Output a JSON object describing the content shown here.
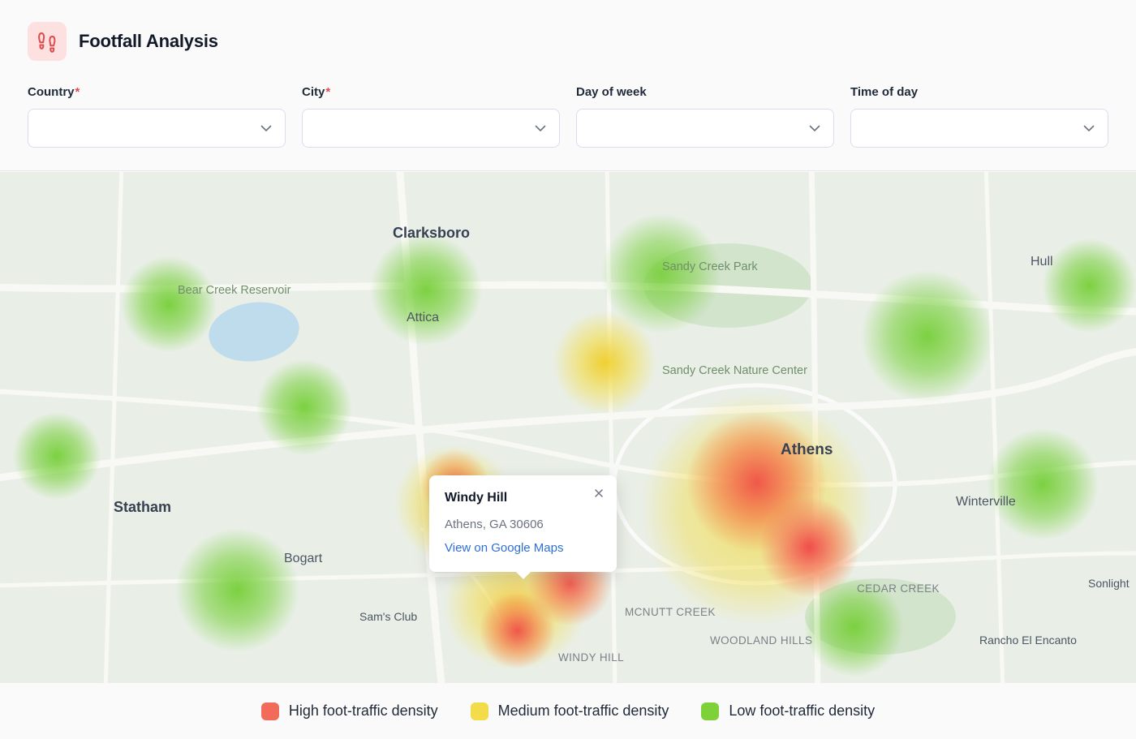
{
  "app": {
    "title": "Footfall Analysis"
  },
  "filters": [
    {
      "label": "Country",
      "required": "*",
      "value": ""
    },
    {
      "label": "City",
      "required": "*",
      "value": ""
    },
    {
      "label": "Day of week",
      "required": "",
      "value": ""
    },
    {
      "label": "Time of day",
      "required": "",
      "value": ""
    }
  ],
  "map": {
    "labels": {
      "clarksboro": "Clarksboro",
      "attica": "Attica",
      "bear_creek_reservoir": "Bear Creek Reservoir",
      "sandy_creek_park": "Sandy Creek Park",
      "sandy_creek_nature_center": "Sandy Creek Nature Center",
      "hull": "Hull",
      "athens": "Athens",
      "statham": "Statham",
      "winterville": "Winterville",
      "bogart": "Bogart",
      "sams_club": "Sam's Club",
      "mcnutt_creek": "MCNUTT CREEK",
      "cedar_creek": "CEDAR CREEK",
      "sonlight": "Sonlight",
      "woodland_hills": "WOODLAND HILLS",
      "rancho_el_encanto": "Rancho El Encanto",
      "windy_hill": "WINDY HILL"
    },
    "heat_colors": {
      "high": "#f05a4a",
      "medium": "#f2dc4a",
      "low": "#7fd13a"
    }
  },
  "popup": {
    "title": "Windy Hill",
    "address": "Athens, GA 30606",
    "link_label": "View on Google Maps"
  },
  "legend": [
    {
      "label": "High foot-traffic density",
      "color": "#f26a5a"
    },
    {
      "label": "Medium foot-traffic density",
      "color": "#f2dc4a"
    },
    {
      "label": "Low foot-traffic density",
      "color": "#7fd13a"
    }
  ],
  "icons": {
    "brand": "footprints-icon",
    "chevron": "chevron-down-icon",
    "close": "close-icon"
  }
}
